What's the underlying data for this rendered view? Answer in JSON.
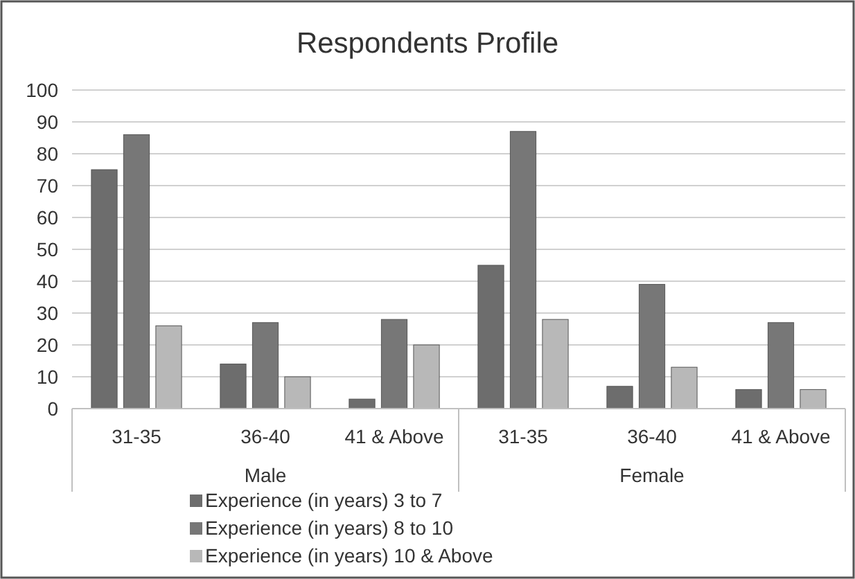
{
  "chart_data": {
    "type": "bar",
    "title": "Respondents Profile",
    "categories": [
      "31-35",
      "36-40",
      "41 & Above",
      "31-35",
      "36-40",
      "41 & Above"
    ],
    "series": [
      {
        "name": "Experience (in years) 3 to 7",
        "color": "#6d6d6d",
        "values": [
          75,
          14,
          3,
          45,
          7,
          6
        ]
      },
      {
        "name": "Experience (in years) 8 to 10",
        "color": "#777777",
        "values": [
          86,
          27,
          28,
          87,
          39,
          27
        ]
      },
      {
        "name": "Experience (in years) 10 & Above",
        "color": "#b8b8b8",
        "values": [
          26,
          10,
          20,
          28,
          13,
          6
        ]
      }
    ],
    "annotations": [
      "Male",
      "Female"
    ],
    "ylim": [
      0,
      100
    ],
    "yticks": [
      0,
      10,
      20,
      30,
      40,
      50,
      60,
      70,
      80,
      90,
      100
    ],
    "grid": "y",
    "legend": "bottom"
  }
}
